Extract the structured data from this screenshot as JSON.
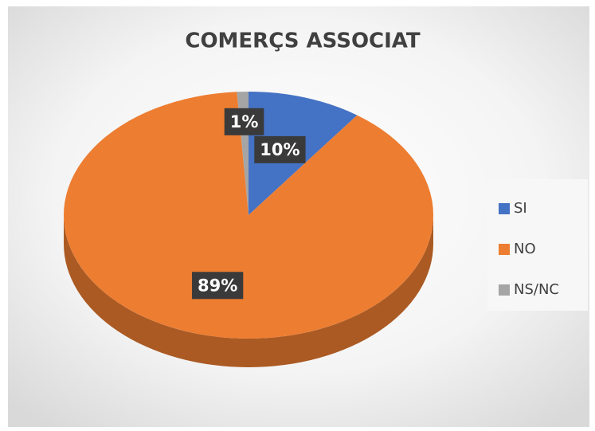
{
  "chart_data": {
    "type": "pie",
    "title": "COMERÇS ASSOCIAT",
    "categories": [
      "SI",
      "NO",
      "NS/NC"
    ],
    "values": [
      10,
      89,
      1
    ],
    "value_labels": [
      "10%",
      "89%",
      "1%"
    ],
    "colors": [
      "#4472c4",
      "#ed7d31",
      "#a5a5a5"
    ],
    "legend": "right"
  }
}
